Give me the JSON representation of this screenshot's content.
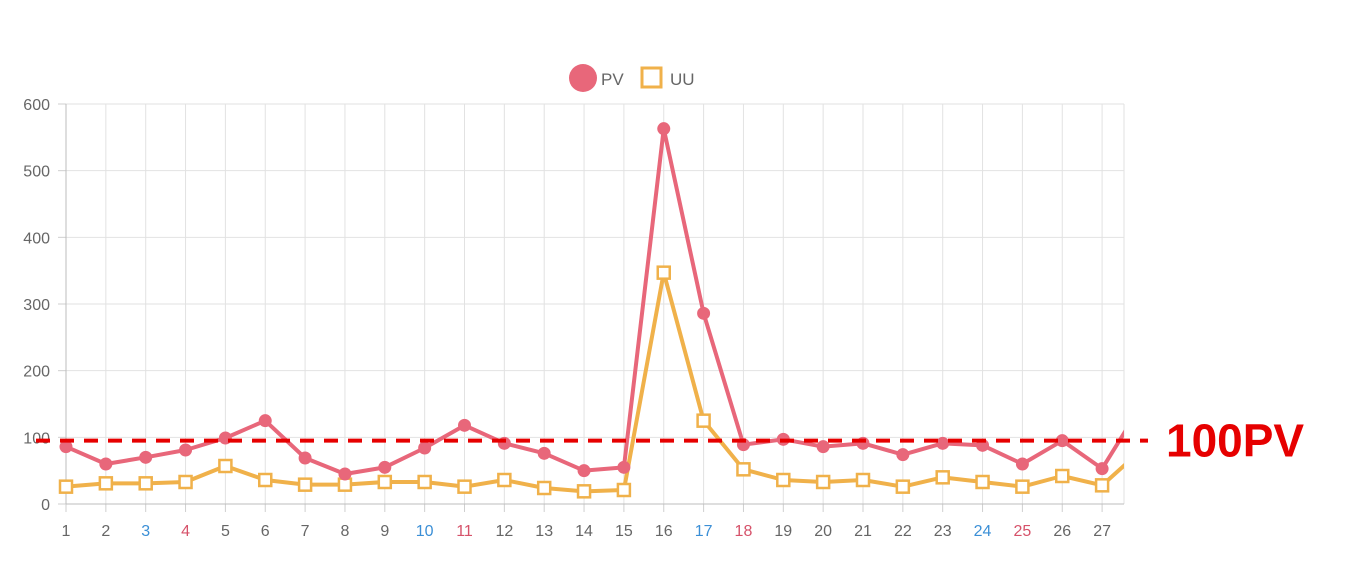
{
  "chart_data": {
    "type": "line",
    "categories": [
      "1",
      "2",
      "3",
      "4",
      "5",
      "6",
      "7",
      "8",
      "9",
      "10",
      "11",
      "12",
      "13",
      "14",
      "15",
      "16",
      "17",
      "18",
      "19",
      "20",
      "21",
      "22",
      "23",
      "24",
      "25",
      "26",
      "27"
    ],
    "category_colors": {
      "default": "#666666",
      "blue": "#3b8fd6",
      "red": "#d6526a",
      "blue_days": [
        "3",
        "10",
        "17",
        "24"
      ],
      "red_days": [
        "4",
        "11",
        "18",
        "25"
      ]
    },
    "series": [
      {
        "name": "PV",
        "color": "#e8677a",
        "marker": "circle",
        "values": [
          86,
          60,
          70,
          81,
          99,
          125,
          69,
          45,
          55,
          84,
          118,
          91,
          76,
          50,
          55,
          563,
          286,
          89,
          97,
          86,
          91,
          74,
          91,
          88,
          60,
          95,
          53
        ]
      },
      {
        "name": "UU",
        "color": "#f0b14a",
        "marker": "square",
        "values": [
          26,
          31,
          31,
          33,
          57,
          36,
          29,
          29,
          33,
          33,
          26,
          36,
          24,
          19,
          21,
          347,
          125,
          52,
          36,
          33,
          36,
          26,
          40,
          33,
          26,
          42,
          28
        ]
      }
    ],
    "y_ticks": [
      "0",
      "100",
      "200",
      "300",
      "400",
      "500",
      "600"
    ],
    "ylim": [
      0,
      600
    ],
    "grid": true,
    "legend_position": "top",
    "reference_line": {
      "value": 95,
      "label": "100PV",
      "color": "#e60000"
    },
    "title": "",
    "xlabel": "",
    "ylabel": ""
  }
}
